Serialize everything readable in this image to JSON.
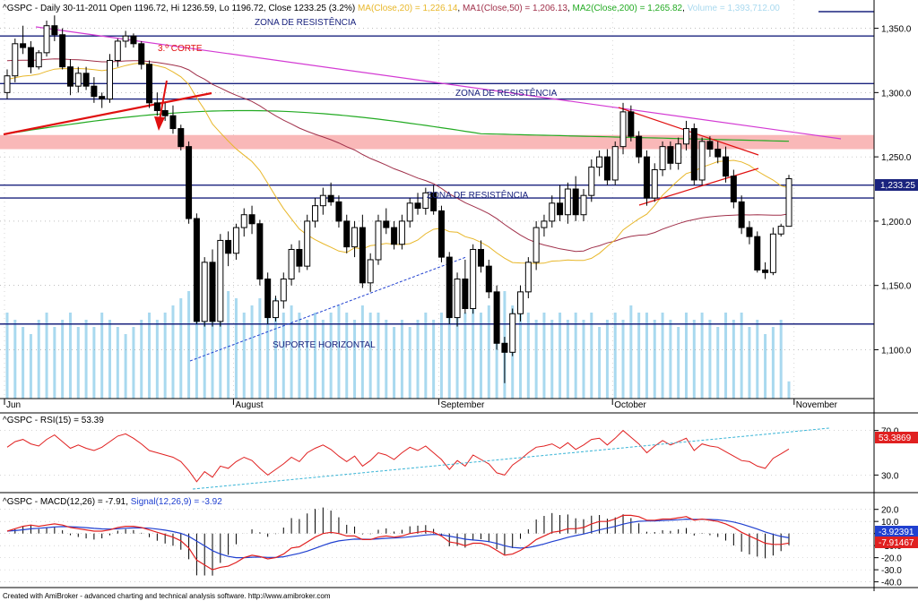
{
  "header": {
    "symbol": "^GSPC",
    "period": "Daily",
    "date": "30-11-2011",
    "open": "Open 1196.72",
    "hi": "Hi 1236.59",
    "lo": "Lo 1196.72",
    "close": "Close 1233.25 (3.2%)",
    "ma20": "MA(Close,20) = 1,226.14",
    "ma50": "MA1(Close,50) = 1,206.13",
    "ma200": "MA2(Close,200) = 1,265.82",
    "volume": "Volume = 1,393,712.00"
  },
  "colors": {
    "ma20": "#e8b72a",
    "ma50": "#a0304a",
    "ma200": "#22aa22",
    "resistance": "#1a237e",
    "volume": "#a9d9ef",
    "rsi": "#e02020",
    "macd": "#e02020",
    "signal": "#2040d0",
    "trend_magenta": "#d33ad3",
    "trend_red": "#e01010",
    "zone_fill": "#f9b8b8"
  },
  "annotations": {
    "zone_top": "ZONA DE RESISTÊNCIA",
    "zone_mid": "ZONA DE RESISTÊNCIA",
    "zone_low": "ZONA DE RESISTÊNCIA",
    "support": "SUPORTE HORIZONTAL",
    "corte": "3.º CORTE"
  },
  "last_price_tag": "1,233.25",
  "months": [
    "Jun",
    "August",
    "September",
    "October",
    "November"
  ],
  "rsi_panel": {
    "title": "^GSPC - RSI(15) = 53.39",
    "tag": "53.3869",
    "ticks": [
      "70.0",
      "30.0"
    ]
  },
  "macd_panel": {
    "title_main": "^GSPC - MACD(12,26) = -7.91,",
    "title_signal": "Signal(12,26,9) = -3.92",
    "tag_signal": "-3.92391",
    "tag_macd": "-7.91467",
    "ticks": [
      "20.0",
      "10.0",
      "0.0",
      "-10.0",
      "-20.0",
      "-30.0",
      "-40.0"
    ]
  },
  "footer": "Created with AmiBroker - advanced charting and technical analysis software. http://www.amibroker.com",
  "chart_data": {
    "type": "candlestick",
    "yticks": [
      1350,
      1300,
      1250,
      1200,
      1150,
      1100
    ],
    "ytick_labels": [
      "1,350.0",
      "1,300.0",
      "1,250.0",
      "1,200.0",
      "1,150.0",
      "1,100.0"
    ],
    "ylim": [
      1062,
      1372
    ],
    "resistance_levels": [
      1344,
      1307,
      1295,
      1228,
      1218
    ],
    "support_level": 1120,
    "resistance_band": [
      1256,
      1267
    ],
    "month_start_index": [
      0,
      29,
      55,
      77,
      100
    ],
    "ohlc": [
      [
        1300,
        1318,
        1295,
        1313
      ],
      [
        1313,
        1342,
        1308,
        1338
      ],
      [
        1338,
        1352,
        1330,
        1335
      ],
      [
        1335,
        1340,
        1315,
        1320
      ],
      [
        1320,
        1333,
        1318,
        1331
      ],
      [
        1331,
        1356,
        1328,
        1352
      ],
      [
        1352,
        1360,
        1340,
        1345
      ],
      [
        1345,
        1350,
        1318,
        1320
      ],
      [
        1320,
        1326,
        1298,
        1305
      ],
      [
        1305,
        1320,
        1300,
        1315
      ],
      [
        1315,
        1320,
        1302,
        1305
      ],
      [
        1305,
        1312,
        1292,
        1297
      ],
      [
        1297,
        1300,
        1288,
        1295
      ],
      [
        1295,
        1330,
        1292,
        1325
      ],
      [
        1325,
        1342,
        1320,
        1340
      ],
      [
        1340,
        1348,
        1335,
        1344
      ],
      [
        1344,
        1346,
        1335,
        1338
      ],
      [
        1338,
        1340,
        1318,
        1322
      ],
      [
        1322,
        1325,
        1288,
        1292
      ],
      [
        1292,
        1300,
        1282,
        1286
      ],
      [
        1286,
        1292,
        1278,
        1282
      ],
      [
        1282,
        1290,
        1268,
        1272
      ],
      [
        1272,
        1275,
        1255,
        1258
      ],
      [
        1258,
        1262,
        1198,
        1202
      ],
      [
        1202,
        1206,
        1120,
        1122
      ],
      [
        1122,
        1172,
        1118,
        1168
      ],
      [
        1168,
        1178,
        1118,
        1122
      ],
      [
        1122,
        1190,
        1118,
        1185
      ],
      [
        1185,
        1192,
        1165,
        1175
      ],
      [
        1175,
        1198,
        1170,
        1195
      ],
      [
        1195,
        1210,
        1188,
        1205
      ],
      [
        1205,
        1212,
        1190,
        1198
      ],
      [
        1198,
        1201,
        1150,
        1155
      ],
      [
        1155,
        1160,
        1120,
        1125
      ],
      [
        1125,
        1142,
        1122,
        1138
      ],
      [
        1138,
        1160,
        1132,
        1155
      ],
      [
        1155,
        1182,
        1150,
        1178
      ],
      [
        1178,
        1185,
        1160,
        1165
      ],
      [
        1165,
        1205,
        1162,
        1200
      ],
      [
        1200,
        1218,
        1195,
        1212
      ],
      [
        1212,
        1226,
        1205,
        1220
      ],
      [
        1220,
        1230,
        1212,
        1215
      ],
      [
        1215,
        1220,
        1195,
        1200
      ],
      [
        1200,
        1205,
        1175,
        1180
      ],
      [
        1180,
        1200,
        1172,
        1195
      ],
      [
        1195,
        1205,
        1148,
        1152
      ],
      [
        1152,
        1175,
        1145,
        1170
      ],
      [
        1170,
        1205,
        1166,
        1200
      ],
      [
        1200,
        1210,
        1190,
        1195
      ],
      [
        1195,
        1200,
        1178,
        1182
      ],
      [
        1182,
        1205,
        1178,
        1200
      ],
      [
        1200,
        1218,
        1195,
        1214
      ],
      [
        1214,
        1222,
        1205,
        1210
      ],
      [
        1210,
        1226,
        1205,
        1222
      ],
      [
        1222,
        1228,
        1205,
        1208
      ],
      [
        1208,
        1212,
        1168,
        1172
      ],
      [
        1172,
        1176,
        1120,
        1125
      ],
      [
        1125,
        1160,
        1118,
        1155
      ],
      [
        1155,
        1170,
        1128,
        1132
      ],
      [
        1132,
        1182,
        1128,
        1178
      ],
      [
        1178,
        1185,
        1160,
        1165
      ],
      [
        1165,
        1170,
        1140,
        1145
      ],
      [
        1145,
        1150,
        1100,
        1105
      ],
      [
        1105,
        1110,
        1074,
        1098
      ],
      [
        1098,
        1132,
        1095,
        1128
      ],
      [
        1128,
        1150,
        1122,
        1145
      ],
      [
        1145,
        1172,
        1140,
        1168
      ],
      [
        1168,
        1200,
        1162,
        1195
      ],
      [
        1195,
        1205,
        1188,
        1200
      ],
      [
        1200,
        1220,
        1195,
        1214
      ],
      [
        1214,
        1228,
        1200,
        1205
      ],
      [
        1205,
        1230,
        1198,
        1225
      ],
      [
        1225,
        1235,
        1200,
        1205
      ],
      [
        1205,
        1225,
        1200,
        1220
      ],
      [
        1220,
        1248,
        1215,
        1242
      ],
      [
        1242,
        1255,
        1235,
        1250
      ],
      [
        1250,
        1256,
        1228,
        1232
      ],
      [
        1232,
        1262,
        1228,
        1258
      ],
      [
        1258,
        1292,
        1252,
        1285
      ],
      [
        1285,
        1290,
        1262,
        1266
      ],
      [
        1266,
        1270,
        1245,
        1250
      ],
      [
        1250,
        1255,
        1212,
        1218
      ],
      [
        1218,
        1245,
        1215,
        1240
      ],
      [
        1240,
        1262,
        1235,
        1258
      ],
      [
        1258,
        1262,
        1240,
        1245
      ],
      [
        1245,
        1265,
        1240,
        1260
      ],
      [
        1260,
        1278,
        1255,
        1272
      ],
      [
        1272,
        1276,
        1228,
        1232
      ],
      [
        1232,
        1265,
        1228,
        1262
      ],
      [
        1262,
        1266,
        1250,
        1256
      ],
      [
        1256,
        1262,
        1245,
        1250
      ],
      [
        1250,
        1258,
        1230,
        1235
      ],
      [
        1235,
        1240,
        1210,
        1215
      ],
      [
        1215,
        1220,
        1190,
        1195
      ],
      [
        1195,
        1200,
        1182,
        1188
      ],
      [
        1188,
        1192,
        1160,
        1162
      ],
      [
        1162,
        1168,
        1155,
        1160
      ],
      [
        1160,
        1195,
        1158,
        1190
      ],
      [
        1190,
        1198,
        1188,
        1196
      ],
      [
        1196,
        1236,
        1196,
        1233
      ]
    ],
    "volume_pct": [
      0.6,
      0.55,
      0.5,
      0.45,
      0.55,
      0.6,
      0.5,
      0.55,
      0.6,
      0.5,
      0.55,
      0.5,
      0.6,
      0.55,
      0.5,
      0.45,
      0.5,
      0.55,
      0.6,
      0.55,
      0.6,
      0.65,
      0.7,
      0.75,
      0.9,
      0.85,
      0.8,
      0.85,
      0.75,
      0.7,
      0.6,
      0.65,
      0.7,
      0.75,
      0.7,
      0.6,
      0.65,
      0.6,
      0.55,
      0.6,
      0.55,
      0.6,
      0.65,
      0.6,
      0.55,
      0.65,
      0.6,
      0.6,
      0.55,
      0.5,
      0.55,
      0.5,
      0.55,
      0.6,
      0.55,
      0.6,
      0.7,
      0.75,
      0.6,
      0.65,
      0.6,
      0.65,
      0.7,
      0.75,
      0.65,
      0.6,
      0.6,
      0.55,
      0.6,
      0.55,
      0.6,
      0.55,
      0.6,
      0.55,
      0.6,
      0.5,
      0.55,
      0.6,
      0.55,
      0.65,
      0.6,
      0.6,
      0.55,
      0.6,
      0.55,
      0.5,
      0.6,
      0.55,
      0.6,
      0.55,
      0.5,
      0.6,
      0.55,
      0.6,
      0.5,
      0.55,
      0.45,
      0.5,
      0.55,
      0.12
    ],
    "rsi": {
      "range": [
        15,
        85
      ],
      "values": [
        55,
        60,
        62,
        58,
        56,
        62,
        66,
        60,
        54,
        57,
        54,
        52,
        55,
        60,
        65,
        67,
        63,
        58,
        52,
        50,
        48,
        46,
        42,
        34,
        24,
        33,
        28,
        38,
        36,
        42,
        46,
        43,
        36,
        30,
        35,
        40,
        46,
        42,
        50,
        54,
        57,
        53,
        47,
        42,
        47,
        38,
        43,
        50,
        48,
        44,
        50,
        55,
        52,
        56,
        50,
        44,
        35,
        43,
        38,
        48,
        44,
        40,
        32,
        30,
        39,
        44,
        50,
        55,
        56,
        58,
        54,
        59,
        53,
        57,
        62,
        63,
        57,
        63,
        70,
        64,
        58,
        50,
        56,
        61,
        57,
        60,
        63,
        52,
        58,
        56,
        55,
        51,
        47,
        43,
        42,
        38,
        36,
        45,
        49,
        53.4
      ]
    },
    "macd": {
      "range": [
        -44,
        22
      ],
      "macd": [
        2,
        4,
        6,
        7,
        6,
        7,
        8,
        7,
        5,
        4,
        3,
        2,
        2,
        3,
        5,
        6,
        6,
        5,
        3,
        1,
        -1,
        -3,
        -6,
        -12,
        -22,
        -26,
        -30,
        -28,
        -27,
        -24,
        -20,
        -18,
        -19,
        -21,
        -20,
        -17,
        -12,
        -11,
        -7,
        -3,
        0,
        1,
        0,
        -2,
        -2,
        -5,
        -5,
        -3,
        -2,
        -3,
        -2,
        0,
        1,
        2,
        1,
        -2,
        -7,
        -8,
        -10,
        -8,
        -8,
        -10,
        -14,
        -18,
        -17,
        -14,
        -10,
        -5,
        -2,
        1,
        2,
        4,
        4,
        5,
        8,
        10,
        10,
        12,
        15,
        15,
        14,
        11,
        11,
        12,
        12,
        13,
        14,
        11,
        12,
        11,
        10,
        8,
        5,
        1,
        -2,
        -5,
        -8,
        -9,
        -9,
        -7.9
      ]
    }
  }
}
